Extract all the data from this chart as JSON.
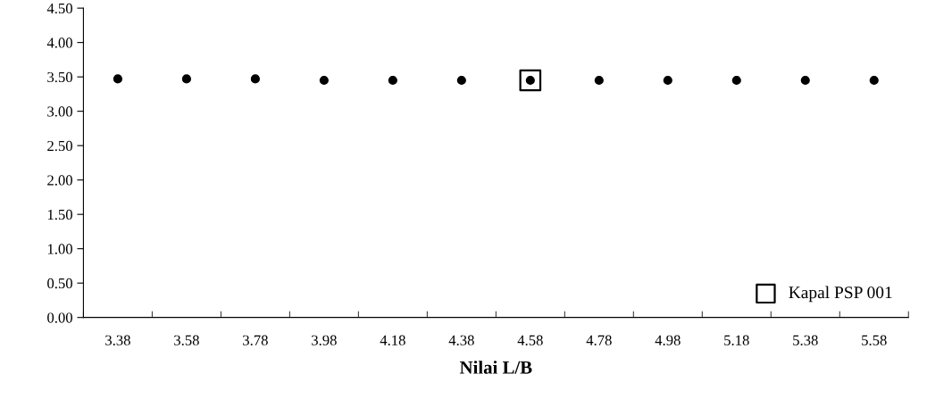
{
  "chart_data": {
    "type": "scatter",
    "xlabel": "Nilai L/B",
    "categories": [
      "3.38",
      "3.58",
      "3.78",
      "3.98",
      "4.18",
      "4.38",
      "4.58",
      "4.78",
      "4.98",
      "5.18",
      "5.38",
      "5.58"
    ],
    "series": [
      {
        "color": "#000000",
        "marker": "circle",
        "values": [
          3.47,
          3.47,
          3.47,
          3.45,
          3.45,
          3.45,
          3.45,
          3.45,
          3.45,
          3.45,
          3.45,
          3.45
        ]
      },
      {
        "name": "Kapal PSP 001",
        "color": "#000000",
        "marker": "square",
        "x": [
          "4.58"
        ],
        "values": [
          3.45
        ]
      }
    ],
    "ylim": [
      0,
      4.5
    ],
    "yticks": [
      {
        "value": 0,
        "label": "0.00"
      },
      {
        "value": 0.5,
        "label": "0.50"
      },
      {
        "value": 1,
        "label": "1.00"
      },
      {
        "value": 1.5,
        "label": "1.50"
      },
      {
        "value": 2,
        "label": "2.00"
      },
      {
        "value": 2.5,
        "label": "2.50"
      },
      {
        "value": 3,
        "label": "3.00"
      },
      {
        "value": 3.5,
        "label": "3.50"
      },
      {
        "value": 4,
        "label": "4.00"
      },
      {
        "value": 4.5,
        "label": "4.50"
      }
    ],
    "grid": false,
    "legend": "bottom right"
  }
}
